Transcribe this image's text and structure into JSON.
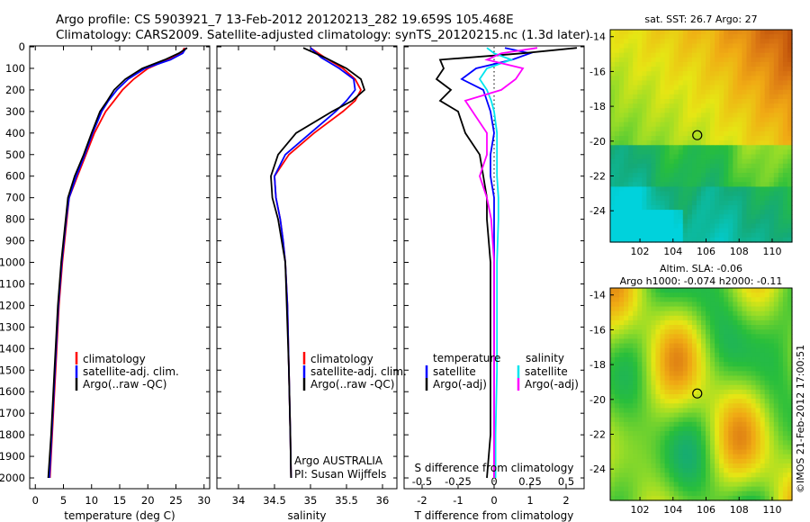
{
  "header": {
    "line1": "Argo profile: CS 5903921_7 13-Feb-2012 20120213_282 19.659S 105.468E",
    "line2": "Climatology: CARS2009. Satellite-adjusted climatology: synTS_20120215.nc (1.3d later)"
  },
  "colors": {
    "climatology": "#ff0000",
    "satellite": "#0000ff",
    "argo": "#000000",
    "salinity_satellite": "#00e5ee",
    "salinity_argo": "#ff00ff"
  },
  "chart_data": [
    {
      "type": "line",
      "name": "temperature-panel",
      "xlabel": "temperature (deg C)",
      "xlim": [
        -1,
        31
      ],
      "xticks": [
        "0",
        "5",
        "10",
        "15",
        "20",
        "25",
        "30"
      ],
      "ylim": [
        2050,
        0
      ],
      "yticks": [
        "0",
        "100",
        "200",
        "300",
        "400",
        "500",
        "600",
        "700",
        "800",
        "900",
        "1000",
        "1100",
        "1200",
        "1300",
        "1400",
        "1500",
        "1600",
        "1700",
        "1800",
        "1900",
        "2000"
      ],
      "legend": [
        "climatology",
        "satellite-adj. clim.",
        "Argo(..raw -QC)"
      ],
      "y": [
        5,
        30,
        60,
        100,
        150,
        200,
        250,
        300,
        400,
        500,
        600,
        700,
        800,
        1000,
        1200,
        1500,
        1800,
        2000
      ],
      "series": [
        {
          "name": "climatology",
          "values": [
            26.5,
            26.0,
            23.5,
            20.0,
            17.5,
            15.5,
            14.0,
            12.5,
            10.5,
            9.0,
            7.5,
            6.0,
            5.6,
            4.8,
            4.2,
            3.6,
            3.0,
            2.6
          ]
        },
        {
          "name": "satellite-adj. clim.",
          "values": [
            26.8,
            26.2,
            24.0,
            19.5,
            16.5,
            14.5,
            13.0,
            11.8,
            10.2,
            8.8,
            7.3,
            6.0,
            5.5,
            4.7,
            4.1,
            3.5,
            2.9,
            2.5
          ]
        },
        {
          "name": "Argo(..raw -QC)",
          "values": [
            27.0,
            25.5,
            23.0,
            19.0,
            16.0,
            14.0,
            12.8,
            11.5,
            10.0,
            8.6,
            7.0,
            5.8,
            5.4,
            4.6,
            4.0,
            3.4,
            2.8,
            2.3
          ]
        }
      ]
    },
    {
      "type": "line",
      "name": "salinity-panel",
      "xlabel": "salinity",
      "xlim": [
        33.7,
        36.2
      ],
      "xticks": [
        "34",
        "34.5",
        "35",
        "35.5",
        "36"
      ],
      "ylim": [
        2050,
        0
      ],
      "legend": [
        "climatology",
        "satellite-adj. clim.",
        "Argo(..raw -QC)"
      ],
      "annotation": [
        "Argo AUSTRALIA",
        "PI: Susan Wijffels"
      ],
      "y": [
        5,
        50,
        100,
        150,
        200,
        250,
        300,
        400,
        500,
        600,
        700,
        800,
        900,
        1000,
        1200,
        1500,
        1800,
        2000
      ],
      "series": [
        {
          "name": "climatology",
          "values": [
            35.0,
            35.2,
            35.45,
            35.62,
            35.7,
            35.62,
            35.45,
            35.05,
            34.7,
            34.5,
            34.52,
            34.58,
            34.62,
            34.65,
            34.68,
            34.7,
            34.72,
            34.73
          ]
        },
        {
          "name": "satellite-adj. clim.",
          "values": [
            35.0,
            35.15,
            35.4,
            35.6,
            35.62,
            35.5,
            35.35,
            35.0,
            34.65,
            34.5,
            34.52,
            34.58,
            34.62,
            34.65,
            34.68,
            34.7,
            34.72,
            34.73
          ]
        },
        {
          "name": "Argo(..raw -QC)",
          "values": [
            34.9,
            35.2,
            35.5,
            35.7,
            35.75,
            35.58,
            35.3,
            34.8,
            34.55,
            34.45,
            34.47,
            34.55,
            34.6,
            34.65,
            34.67,
            34.7,
            34.72,
            34.73
          ]
        }
      ]
    },
    {
      "type": "line",
      "name": "difference-panel",
      "xlabel": "T difference from climatology",
      "x_label_top": "S difference from climatology",
      "xlim": [
        -2.5,
        2.5
      ],
      "xticks": [
        "-2",
        "-1",
        "0",
        "1",
        "2"
      ],
      "xticks_salinity": [
        "-0.5",
        "-0.25",
        "0",
        "0.25",
        "0.5"
      ],
      "ylim": [
        2050,
        0
      ],
      "legend_temperature": [
        "temperature",
        "satellite",
        "Argo(-adj)"
      ],
      "legend_salinity": [
        "salinity",
        "satellite",
        "Argo(-adj)"
      ],
      "y": [
        5,
        30,
        60,
        100,
        150,
        200,
        250,
        300,
        400,
        500,
        600,
        700,
        800,
        1000,
        1200,
        1500,
        1800,
        2000
      ],
      "series": [
        {
          "name": "temperature satellite",
          "values": [
            0.3,
            1.0,
            0.5,
            -0.5,
            -0.9,
            -0.3,
            -0.2,
            -0.1,
            0.0,
            -0.1,
            -0.1,
            0.0,
            0.0,
            0.0,
            0.0,
            0.0,
            0.0,
            0.0
          ]
        },
        {
          "name": "temperature Argo(-adj)",
          "values": [
            2.3,
            0.8,
            -1.5,
            -1.4,
            -1.6,
            -1.2,
            -1.5,
            -1.0,
            -0.8,
            -0.4,
            -0.3,
            -0.2,
            -0.2,
            -0.1,
            -0.1,
            -0.1,
            -0.1,
            -0.2
          ]
        },
        {
          "name": "salinity satellite",
          "values": [
            -0.05,
            0.0,
            0.12,
            -0.05,
            -0.1,
            -0.05,
            -0.02,
            0.0,
            0.02,
            0.02,
            0.02,
            0.03,
            0.03,
            0.02,
            0.02,
            0.02,
            0.01,
            0.01
          ]
        },
        {
          "name": "salinity Argo(-adj)",
          "values": [
            0.3,
            0.05,
            -0.05,
            0.2,
            0.15,
            0.05,
            -0.2,
            -0.15,
            -0.05,
            -0.05,
            -0.1,
            -0.05,
            -0.02,
            0.0,
            0.0,
            0.0,
            0.0,
            0.0
          ]
        }
      ]
    },
    {
      "type": "heatmap",
      "name": "sst-map",
      "title": "sat. SST: 26.7  Argo: 27",
      "xlim": [
        100.2,
        111.2
      ],
      "ylim": [
        -25.8,
        -13.6
      ],
      "xticks": [
        "102",
        "104",
        "106",
        "108",
        "110"
      ],
      "yticks": [
        "-14",
        "-16",
        "-18",
        "-20",
        "-22",
        "-24"
      ],
      "marker": {
        "lon": 105.468,
        "lat": -19.659
      }
    },
    {
      "type": "heatmap",
      "name": "sla-map",
      "title_lines": [
        "Altim. SLA: -0.06",
        "Argo h1000: -0.074  h2000: -0.11"
      ],
      "xlim": [
        100.2,
        111.2
      ],
      "ylim": [
        -25.8,
        -13.6
      ],
      "xticks": [
        "102",
        "104",
        "106",
        "108",
        "110"
      ],
      "yticks": [
        "-14",
        "-16",
        "-18",
        "-20",
        "-22",
        "-24"
      ],
      "marker": {
        "lon": 105.468,
        "lat": -19.659
      }
    }
  ],
  "footer_vertical": "©IMOS 21-Feb-2012 17:00:51"
}
